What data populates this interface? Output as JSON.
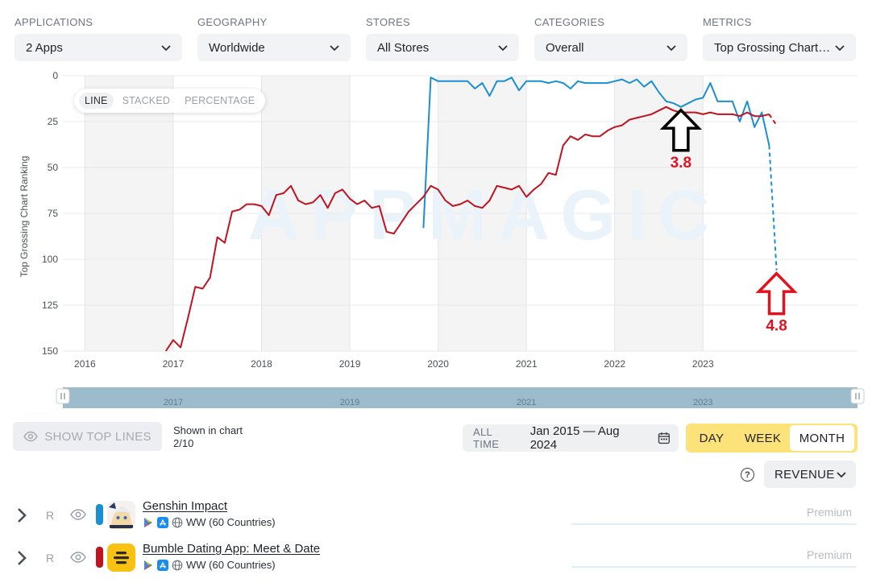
{
  "filters": [
    {
      "label": "APPLICATIONS",
      "value": "2 Apps"
    },
    {
      "label": "GEOGRAPHY",
      "value": "Worldwide"
    },
    {
      "label": "STORES",
      "value": "All Stores"
    },
    {
      "label": "CATEGORIES",
      "value": "Overall"
    },
    {
      "label": "METRICS",
      "value": "Top Grossing Chart Ranking"
    }
  ],
  "chart_modes": {
    "line": "LINE",
    "stacked": "STACKED",
    "percentage": "PERCENTAGE",
    "active": "LINE"
  },
  "chart_data": {
    "type": "line",
    "ylabel": "Top Grossing Chart Ranking",
    "yaxis_inverted": true,
    "ylim": [
      0,
      150
    ],
    "yticks": [
      "0",
      "25",
      "50",
      "75",
      "100",
      "125",
      "150"
    ],
    "xticks": [
      "2016",
      "2017",
      "2018",
      "2019",
      "2020",
      "2021",
      "2022",
      "2023"
    ],
    "xlim": [
      "2015-10",
      "2024-10"
    ],
    "watermark": "APPMAGIC",
    "series": [
      {
        "app": "Genshin Impact",
        "color": "#1b8fd0",
        "points": [
          [
            "2019-11",
            83
          ],
          [
            "2019-12",
            1
          ],
          [
            "2020-01",
            3
          ],
          [
            "2020-02",
            3
          ],
          [
            "2020-03",
            3
          ],
          [
            "2020-04",
            3
          ],
          [
            "2020-05",
            3
          ],
          [
            "2020-06",
            7
          ],
          [
            "2020-07",
            4
          ],
          [
            "2020-08",
            11
          ],
          [
            "2020-09",
            3
          ],
          [
            "2020-10",
            3
          ],
          [
            "2020-11",
            1
          ],
          [
            "2020-12",
            8
          ],
          [
            "2021-01",
            3
          ],
          [
            "2021-02",
            3
          ],
          [
            "2021-03",
            3
          ],
          [
            "2021-04",
            4
          ],
          [
            "2021-05",
            3
          ],
          [
            "2021-06",
            4
          ],
          [
            "2021-07",
            7
          ],
          [
            "2021-08",
            3
          ],
          [
            "2021-09",
            4
          ],
          [
            "2021-10",
            4
          ],
          [
            "2021-11",
            4
          ],
          [
            "2021-12",
            4
          ],
          [
            "2022-01",
            3
          ],
          [
            "2022-02",
            2
          ],
          [
            "2022-03",
            4
          ],
          [
            "2022-04",
            2
          ],
          [
            "2022-05",
            6
          ],
          [
            "2022-06",
            3
          ],
          [
            "2022-07",
            9
          ],
          [
            "2022-08",
            14
          ],
          [
            "2022-09",
            15
          ],
          [
            "2022-10",
            17
          ],
          [
            "2022-11",
            15
          ],
          [
            "2022-12",
            13
          ],
          [
            "2023-01",
            12
          ],
          [
            "2023-02",
            4
          ],
          [
            "2023-03",
            14
          ],
          [
            "2023-04",
            14
          ],
          [
            "2023-05",
            14
          ],
          [
            "2023-06",
            25
          ],
          [
            "2023-07",
            14
          ],
          [
            "2023-08",
            28
          ],
          [
            "2023-09",
            20
          ],
          [
            "2023-10",
            38
          ]
        ],
        "projected": [
          [
            "2023-10",
            38
          ],
          [
            "2023-11",
            106
          ]
        ]
      },
      {
        "app": "Bumble Dating App: Meet & Date",
        "color": "#c1121f",
        "points": [
          [
            "2016-12",
            150
          ],
          [
            "2017-01",
            144
          ],
          [
            "2017-02",
            148
          ],
          [
            "2017-03",
            132
          ],
          [
            "2017-04",
            115
          ],
          [
            "2017-05",
            116
          ],
          [
            "2017-06",
            110
          ],
          [
            "2017-07",
            88
          ],
          [
            "2017-08",
            91
          ],
          [
            "2017-09",
            74
          ],
          [
            "2017-10",
            73
          ],
          [
            "2017-11",
            70
          ],
          [
            "2017-12",
            70
          ],
          [
            "2018-01",
            71
          ],
          [
            "2018-02",
            76
          ],
          [
            "2018-03",
            65
          ],
          [
            "2018-04",
            64
          ],
          [
            "2018-05",
            60
          ],
          [
            "2018-06",
            68
          ],
          [
            "2018-07",
            70
          ],
          [
            "2018-08",
            69
          ],
          [
            "2018-09",
            65
          ],
          [
            "2018-10",
            72
          ],
          [
            "2018-11",
            64
          ],
          [
            "2018-12",
            62
          ],
          [
            "2019-01",
            67
          ],
          [
            "2019-02",
            70
          ],
          [
            "2019-03",
            68
          ],
          [
            "2019-04",
            72
          ],
          [
            "2019-05",
            71
          ],
          [
            "2019-06",
            85
          ],
          [
            "2019-07",
            86
          ],
          [
            "2019-08",
            80
          ],
          [
            "2019-09",
            74
          ],
          [
            "2019-10",
            70
          ],
          [
            "2019-11",
            66
          ],
          [
            "2019-12",
            60
          ],
          [
            "2020-01",
            62
          ],
          [
            "2020-02",
            68
          ],
          [
            "2020-03",
            71
          ],
          [
            "2020-04",
            70
          ],
          [
            "2020-05",
            68
          ],
          [
            "2020-06",
            71
          ],
          [
            "2020-07",
            72
          ],
          [
            "2020-08",
            68
          ],
          [
            "2020-09",
            60
          ],
          [
            "2020-10",
            61
          ],
          [
            "2020-11",
            62
          ],
          [
            "2020-12",
            60
          ],
          [
            "2021-01",
            66
          ],
          [
            "2021-02",
            62
          ],
          [
            "2021-03",
            59
          ],
          [
            "2021-04",
            53
          ],
          [
            "2021-05",
            54
          ],
          [
            "2021-06",
            38
          ],
          [
            "2021-07",
            33
          ],
          [
            "2021-08",
            35
          ],
          [
            "2021-09",
            32
          ],
          [
            "2021-10",
            33
          ],
          [
            "2021-11",
            33
          ],
          [
            "2021-12",
            30
          ],
          [
            "2022-01",
            28
          ],
          [
            "2022-02",
            27
          ],
          [
            "2022-03",
            24
          ],
          [
            "2022-04",
            23
          ],
          [
            "2022-05",
            22
          ],
          [
            "2022-06",
            21
          ],
          [
            "2022-07",
            19
          ],
          [
            "2022-08",
            17
          ],
          [
            "2022-09",
            19
          ],
          [
            "2022-10",
            20
          ],
          [
            "2022-11",
            20
          ],
          [
            "2022-12",
            20
          ],
          [
            "2023-01",
            21
          ],
          [
            "2023-02",
            20
          ],
          [
            "2023-03",
            21
          ],
          [
            "2023-04",
            21
          ],
          [
            "2023-05",
            21
          ],
          [
            "2023-06",
            22
          ],
          [
            "2023-07",
            20
          ],
          [
            "2023-08",
            22
          ],
          [
            "2023-09",
            22
          ],
          [
            "2023-10",
            21
          ]
        ],
        "projected": [
          [
            "2023-10",
            21
          ],
          [
            "2023-11",
            27
          ]
        ]
      }
    ],
    "annotations": [
      {
        "text": "3.8",
        "color": "#e0121e",
        "arrow_color": "#000000",
        "at": [
          "2022-10",
          17
        ],
        "direction": "up"
      },
      {
        "text": "4.8",
        "color": "#e0121e",
        "arrow_color": "#e0121e",
        "at": [
          "2023-11",
          106
        ],
        "direction": "up"
      }
    ],
    "navigator_labels": [
      "2017",
      "2019",
      "2021",
      "2023"
    ]
  },
  "controls": {
    "show_top_lines": "SHOW TOP LINES",
    "shown_in_chart": "Shown in chart",
    "shown_count": "2/10",
    "all_time": "ALL TIME",
    "date_range": "Jan 2015 — Aug 2024",
    "periods": [
      "DAY",
      "WEEK",
      "MONTH"
    ],
    "active_period": "MONTH",
    "help": "?",
    "revenue": "REVENUE"
  },
  "apps": [
    {
      "tag": "R",
      "name": "Genshin Impact",
      "meta": "WW (60 Countries)",
      "premium": "Premium",
      "color": "#1b8fd0",
      "icon": "genshin-app-icon"
    },
    {
      "tag": "R",
      "name": "Bumble Dating App: Meet & Date",
      "meta": "WW (60 Countries)",
      "premium": "Premium",
      "color": "#c1121f",
      "icon": "bumble-app-icon"
    }
  ]
}
